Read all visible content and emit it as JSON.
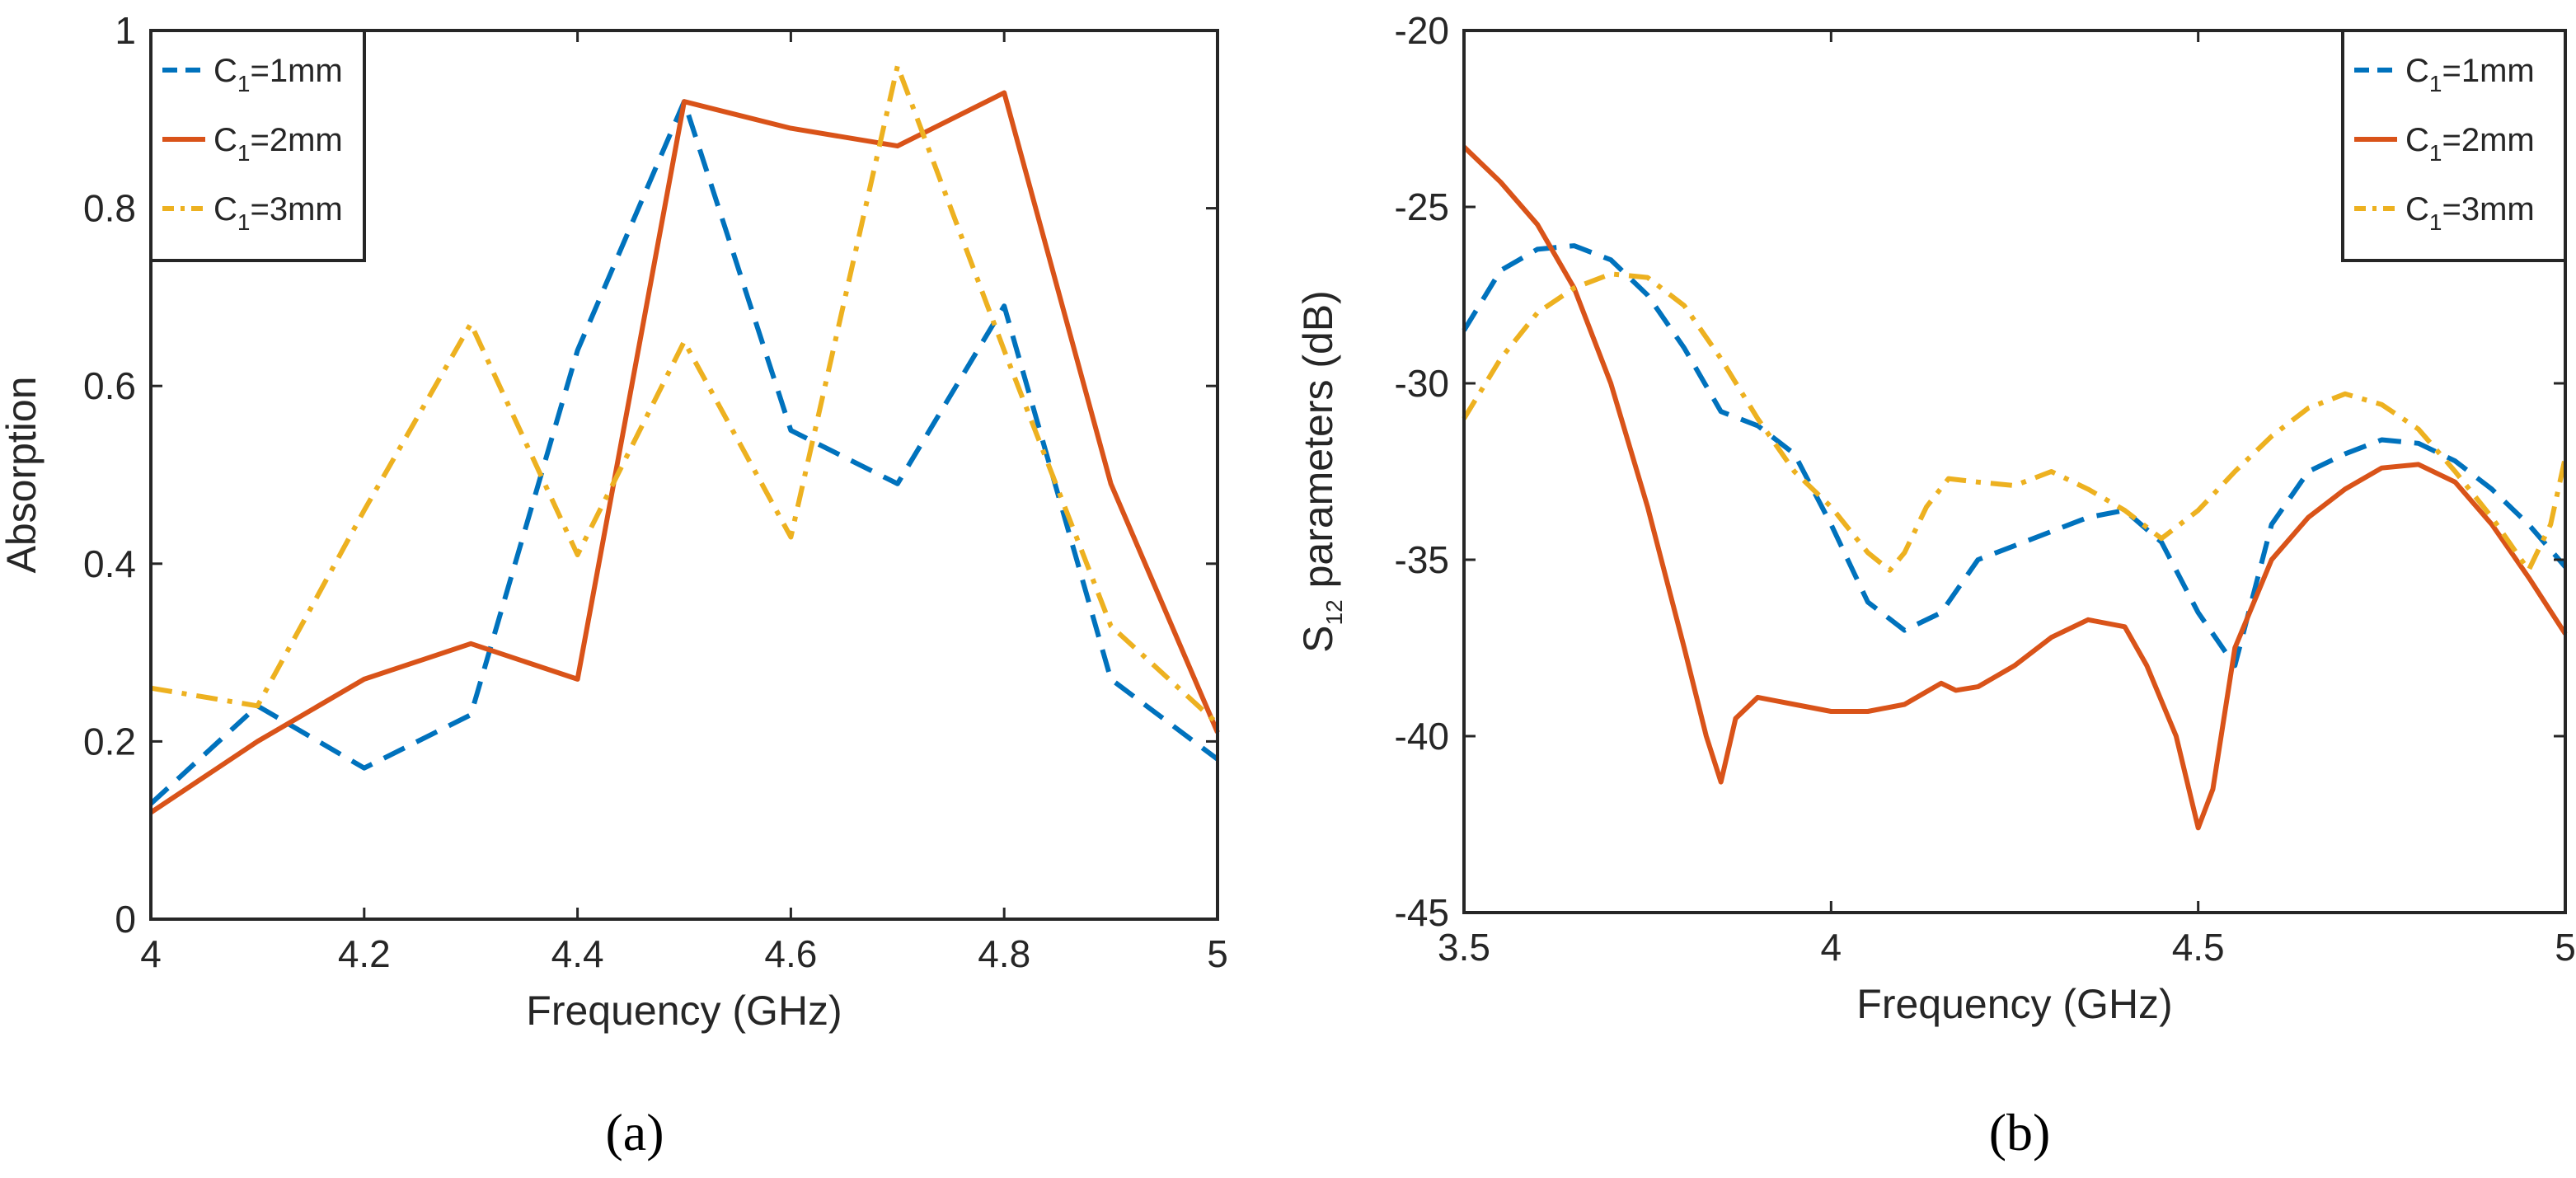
{
  "chart_data": [
    {
      "type": "line",
      "panel_label": "(a)",
      "xlabel": "Frequency (GHz)",
      "ylabel": "Absorption",
      "xlim": [
        4,
        5
      ],
      "ylim": [
        0,
        1
      ],
      "xticks": [
        4,
        4.2,
        4.4,
        4.6,
        4.8,
        5
      ],
      "xtick_labels": [
        "4",
        "4.2",
        "4.4",
        "4.6",
        "4.8",
        "5"
      ],
      "yticks": [
        0,
        0.2,
        0.4,
        0.6,
        0.8,
        1
      ],
      "ytick_labels": [
        "0",
        "0.2",
        "0.4",
        "0.6",
        "0.8",
        "1"
      ],
      "grid": false,
      "legend_position": "top-left",
      "x": [
        4.0,
        4.1,
        4.2,
        4.3,
        4.4,
        4.5,
        4.6,
        4.7,
        4.8,
        4.9,
        5.0
      ],
      "series": [
        {
          "legend_main": "C",
          "legend_sub": "1",
          "legend_rest": "=1mm",
          "color": "#0072BD",
          "dash": "dashed",
          "values": [
            0.13,
            0.24,
            0.17,
            0.23,
            0.64,
            0.92,
            0.55,
            0.49,
            0.69,
            0.27,
            0.18
          ]
        },
        {
          "legend_main": "C",
          "legend_sub": "1",
          "legend_rest": "=2mm",
          "color": "#D95319",
          "dash": "solid",
          "values": [
            0.12,
            0.2,
            0.27,
            0.31,
            0.27,
            0.92,
            0.89,
            0.87,
            0.93,
            0.49,
            0.21
          ]
        },
        {
          "legend_main": "C",
          "legend_sub": "1",
          "legend_rest": "=3mm",
          "color": "#EDB120",
          "dash": "dashdot",
          "values": [
            0.26,
            0.24,
            0.46,
            0.67,
            0.41,
            0.65,
            0.43,
            0.96,
            0.64,
            0.33,
            0.22
          ]
        }
      ]
    },
    {
      "type": "line",
      "panel_label": "(b)",
      "xlabel": "Frequency (GHz)",
      "ylabel_main": "S",
      "ylabel_sub": "12",
      "ylabel_rest": " parameters (dB)",
      "xlim": [
        3.5,
        5
      ],
      "ylim": [
        -45,
        -20
      ],
      "xticks": [
        3.5,
        4,
        4.5,
        5
      ],
      "xtick_labels": [
        "3.5",
        "4",
        "4.5",
        "5"
      ],
      "yticks": [
        -45,
        -40,
        -35,
        -30,
        -25,
        -20
      ],
      "ytick_labels": [
        "-45",
        "-40",
        "-35",
        "-30",
        "-25",
        "-20"
      ],
      "grid": false,
      "legend_position": "top-right",
      "series": [
        {
          "legend_main": "C",
          "legend_sub": "1",
          "legend_rest": "=1mm",
          "color": "#0072BD",
          "dash": "dashed",
          "x": [
            3.5,
            3.55,
            3.6,
            3.65,
            3.7,
            3.75,
            3.8,
            3.85,
            3.9,
            3.95,
            4.0,
            4.05,
            4.1,
            4.15,
            4.2,
            4.25,
            4.3,
            4.35,
            4.4,
            4.45,
            4.5,
            4.55,
            4.6,
            4.65,
            4.7,
            4.75,
            4.8,
            4.85,
            4.9,
            4.95,
            5.0
          ],
          "y": [
            -28.5,
            -26.8,
            -26.2,
            -26.1,
            -26.5,
            -27.5,
            -29.0,
            -30.8,
            -31.2,
            -32.0,
            -34.0,
            -36.2,
            -37.0,
            -36.5,
            -35.0,
            -34.6,
            -34.2,
            -33.8,
            -33.6,
            -34.5,
            -36.5,
            -38.0,
            -34.0,
            -32.5,
            -32.0,
            -31.6,
            -31.7,
            -32.2,
            -33.0,
            -34.0,
            -35.2
          ]
        },
        {
          "legend_main": "C",
          "legend_sub": "1",
          "legend_rest": "=2mm",
          "color": "#D95319",
          "dash": "solid",
          "x": [
            3.5,
            3.55,
            3.6,
            3.65,
            3.7,
            3.75,
            3.8,
            3.83,
            3.85,
            3.87,
            3.9,
            3.95,
            4.0,
            4.05,
            4.1,
            4.15,
            4.17,
            4.2,
            4.25,
            4.3,
            4.35,
            4.4,
            4.43,
            4.47,
            4.5,
            4.52,
            4.55,
            4.6,
            4.65,
            4.7,
            4.75,
            4.8,
            4.85,
            4.9,
            4.95,
            5.0
          ],
          "y": [
            -23.3,
            -24.3,
            -25.5,
            -27.3,
            -30.0,
            -33.5,
            -37.5,
            -40.0,
            -41.3,
            -39.5,
            -38.9,
            -39.1,
            -39.3,
            -39.3,
            -39.1,
            -38.5,
            -38.7,
            -38.6,
            -38.0,
            -37.2,
            -36.7,
            -36.9,
            -38.0,
            -40.0,
            -42.6,
            -41.5,
            -37.5,
            -35.0,
            -33.8,
            -33.0,
            -32.4,
            -32.3,
            -32.8,
            -34.0,
            -35.5,
            -37.1
          ]
        },
        {
          "legend_main": "C",
          "legend_sub": "1",
          "legend_rest": "=3mm",
          "color": "#EDB120",
          "dash": "dashdot",
          "x": [
            3.5,
            3.55,
            3.6,
            3.65,
            3.7,
            3.75,
            3.8,
            3.85,
            3.9,
            3.95,
            4.0,
            4.05,
            4.08,
            4.1,
            4.13,
            4.16,
            4.2,
            4.25,
            4.3,
            4.35,
            4.4,
            4.45,
            4.5,
            4.55,
            4.6,
            4.65,
            4.7,
            4.75,
            4.8,
            4.85,
            4.9,
            4.95,
            4.98,
            5.0
          ],
          "y": [
            -31.0,
            -29.3,
            -28.0,
            -27.3,
            -26.9,
            -27.0,
            -27.8,
            -29.3,
            -31.0,
            -32.5,
            -33.5,
            -34.8,
            -35.3,
            -34.8,
            -33.5,
            -32.7,
            -32.8,
            -32.9,
            -32.5,
            -33.0,
            -33.6,
            -34.4,
            -33.6,
            -32.5,
            -31.5,
            -30.7,
            -30.3,
            -30.6,
            -31.3,
            -32.5,
            -33.8,
            -35.3,
            -34.0,
            -32.1
          ]
        }
      ]
    }
  ]
}
